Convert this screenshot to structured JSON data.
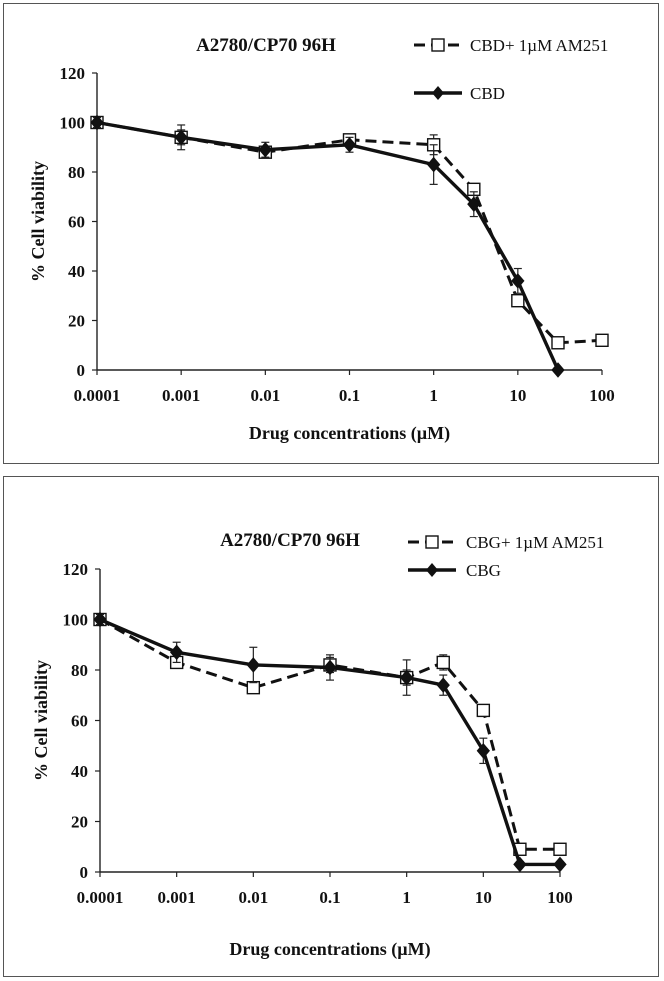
{
  "chart_data": [
    {
      "type": "line",
      "title": "A2780/CP70 96H",
      "xlabel": "Drug concentrations (µM)",
      "ylabel": "% Cell viability",
      "x_scale": "log",
      "xlim": [
        0.0001,
        100
      ],
      "ylim": [
        0,
        120
      ],
      "x_ticks": [
        "0.0001",
        "0.001",
        "0.01",
        "0.1",
        "1",
        "10",
        "100"
      ],
      "y_ticks": [
        "0",
        "20",
        "40",
        "60",
        "80",
        "100",
        "120"
      ],
      "grid": false,
      "legend_position": "top-right",
      "series": [
        {
          "name": "CBD+ 1µM AM251",
          "style": "dashed",
          "marker": "open-square",
          "color": "#111111",
          "points": [
            {
              "x": 0.0001,
              "y": 100,
              "err": 2
            },
            {
              "x": 0.001,
              "y": 94,
              "err": 3
            },
            {
              "x": 0.01,
              "y": 88,
              "err": 2
            },
            {
              "x": 0.1,
              "y": 93,
              "err": 2
            },
            {
              "x": 1,
              "y": 91,
              "err": 4
            },
            {
              "x": 3,
              "y": 73,
              "err": 2
            },
            {
              "x": 10,
              "y": 28,
              "err": 2
            },
            {
              "x": 30,
              "y": 11,
              "err": 1
            },
            {
              "x": 100,
              "y": 12,
              "err": 1
            }
          ]
        },
        {
          "name": "CBD",
          "style": "solid",
          "marker": "diamond",
          "color": "#111111",
          "points": [
            {
              "x": 0.0001,
              "y": 100,
              "err": 2
            },
            {
              "x": 0.001,
              "y": 94,
              "err": 5
            },
            {
              "x": 0.01,
              "y": 89,
              "err": 3
            },
            {
              "x": 0.1,
              "y": 91,
              "err": 3
            },
            {
              "x": 1,
              "y": 83,
              "err": 8
            },
            {
              "x": 3,
              "y": 67,
              "err": 5
            },
            {
              "x": 10,
              "y": 36,
              "err": 5
            },
            {
              "x": 30,
              "y": 0,
              "err": 0
            }
          ]
        }
      ]
    },
    {
      "type": "line",
      "title": "A2780/CP70 96H",
      "xlabel": "Drug concentrations (µM)",
      "ylabel": "% Cell viability",
      "x_scale": "log",
      "xlim": [
        0.0001,
        100
      ],
      "ylim": [
        0,
        120
      ],
      "x_ticks": [
        "0.0001",
        "0.001",
        "0.01",
        "0.1",
        "1",
        "10",
        "100"
      ],
      "y_ticks": [
        "0",
        "20",
        "40",
        "60",
        "80",
        "100",
        "120"
      ],
      "grid": false,
      "legend_position": "top-right",
      "series": [
        {
          "name": "CBG+ 1µM AM251",
          "style": "dashed",
          "marker": "open-square",
          "color": "#111111",
          "points": [
            {
              "x": 0.0001,
              "y": 100,
              "err": 2
            },
            {
              "x": 0.001,
              "y": 83,
              "err": 2
            },
            {
              "x": 0.01,
              "y": 73,
              "err": 2
            },
            {
              "x": 0.1,
              "y": 82,
              "err": 3
            },
            {
              "x": 1,
              "y": 77,
              "err": 3
            },
            {
              "x": 3,
              "y": 83,
              "err": 3
            },
            {
              "x": 10,
              "y": 64,
              "err": 2
            },
            {
              "x": 30,
              "y": 9,
              "err": 1
            },
            {
              "x": 100,
              "y": 9,
              "err": 1
            }
          ]
        },
        {
          "name": "CBG",
          "style": "solid",
          "marker": "diamond",
          "color": "#111111",
          "points": [
            {
              "x": 0.0001,
              "y": 100,
              "err": 2
            },
            {
              "x": 0.001,
              "y": 87,
              "err": 4
            },
            {
              "x": 0.01,
              "y": 82,
              "err": 7
            },
            {
              "x": 0.1,
              "y": 81,
              "err": 5
            },
            {
              "x": 1,
              "y": 77,
              "err": 7
            },
            {
              "x": 3,
              "y": 74,
              "err": 4
            },
            {
              "x": 10,
              "y": 48,
              "err": 5
            },
            {
              "x": 30,
              "y": 3,
              "err": 1
            },
            {
              "x": 100,
              "y": 3,
              "err": 1
            }
          ]
        }
      ]
    }
  ]
}
